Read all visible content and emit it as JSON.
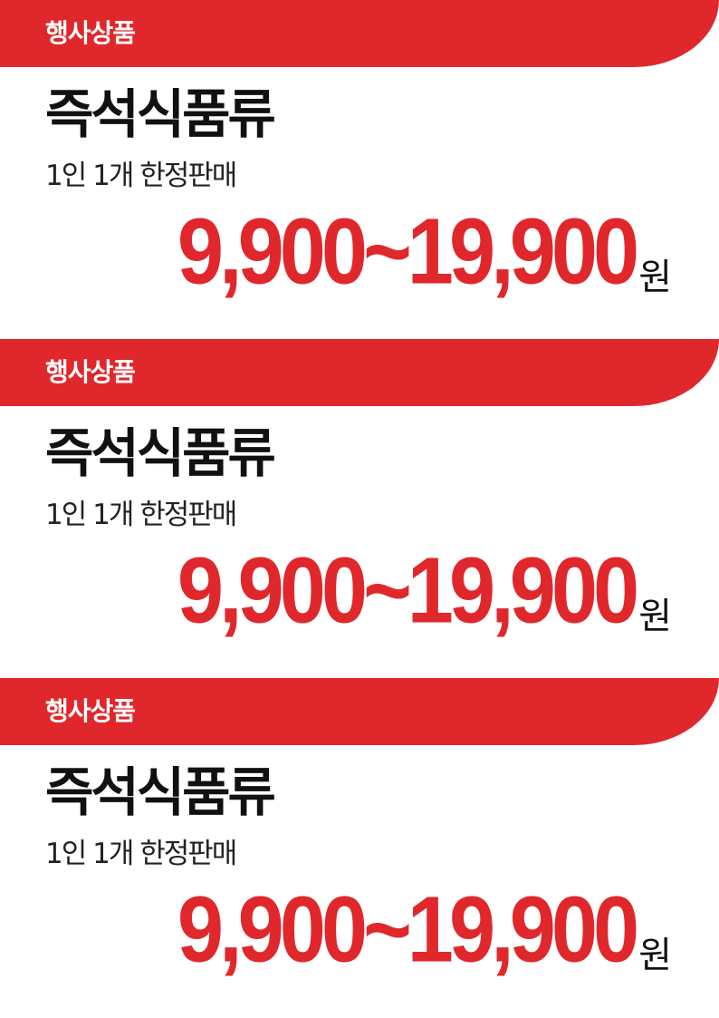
{
  "cards": [
    {
      "banner_label": "행사상품",
      "product_name": "즉석식품류",
      "limit_text": "1인 1개 한정판매",
      "price": "9,900~19,900",
      "currency": "원"
    },
    {
      "banner_label": "행사상품",
      "product_name": "즉석식품류",
      "limit_text": "1인 1개 한정판매",
      "price": "9,900~19,900",
      "currency": "원"
    },
    {
      "banner_label": "행사상품",
      "product_name": "즉석식품류",
      "limit_text": "1인 1개 한정판매",
      "price": "9,900~19,900",
      "currency": "원"
    }
  ],
  "colors": {
    "accent_red": "#e0272b",
    "text_dark": "#111111",
    "banner_text": "#ffffff"
  }
}
